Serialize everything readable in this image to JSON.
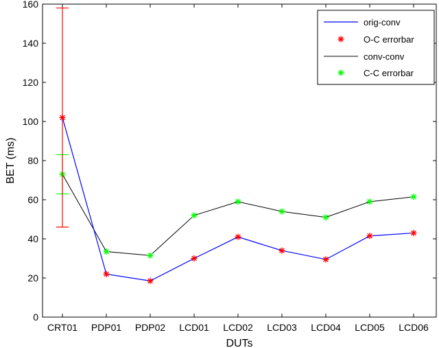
{
  "chart_data": {
    "type": "line",
    "xlabel": "DUTs",
    "ylabel": "BET (ms)",
    "categories": [
      "CRT01",
      "PDP01",
      "PDP02",
      "LCD01",
      "LCD02",
      "LCD03",
      "LCD04",
      "LCD05",
      "LCD06"
    ],
    "ylim": [
      0,
      160
    ],
    "yticks": [
      0,
      20,
      40,
      60,
      80,
      100,
      120,
      140,
      160
    ],
    "grid": false,
    "legend_position": "top-right",
    "series": [
      {
        "name": "orig-conv",
        "errorbar_name": "O-C errorbar",
        "line_color": "#0000ff",
        "marker_color": "#ff0000",
        "values": [
          102,
          22,
          18.5,
          30,
          41,
          34,
          29.5,
          41.5,
          43
        ],
        "errors": [
          56,
          0.8,
          0.8,
          0.8,
          0.8,
          0.8,
          0.8,
          0.8,
          0.8
        ]
      },
      {
        "name": "conv-conv",
        "errorbar_name": "C-C errorbar",
        "line_color": "#000000",
        "marker_color": "#00ff00",
        "values": [
          73,
          33.5,
          31.5,
          52,
          59,
          54,
          51,
          59,
          61.5
        ],
        "errors": [
          10,
          0.8,
          0.8,
          0.8,
          0.8,
          0.8,
          0.8,
          0.8,
          0.8
        ]
      }
    ]
  }
}
